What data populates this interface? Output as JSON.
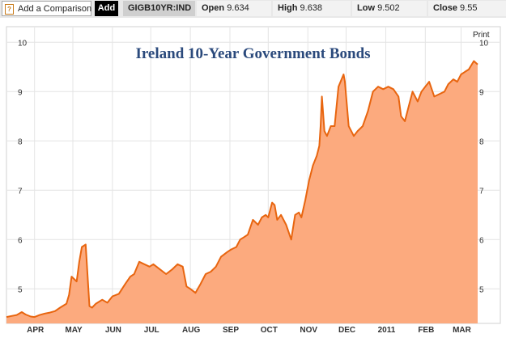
{
  "toolbar": {
    "help_glyph": "?",
    "compare_label": "Add a Comparison",
    "add_label": "Add",
    "symbol": "GIGB10YR:IND",
    "open_label": "Open",
    "open_value": "9.634",
    "high_label": "High",
    "high_value": "9.638",
    "low_label": "Low",
    "low_value": "9.502",
    "close_label": "Close",
    "close_value": "9.55"
  },
  "print_label": "Print",
  "colors": {
    "line": "#e8650f",
    "fill": "#fcaa7e",
    "title": "#2b4a7c"
  },
  "chart_data": {
    "type": "area",
    "title": "Ireland 10-Year Government Bonds",
    "xlabel": "",
    "ylabel": "",
    "ylim": [
      4.3,
      10.3
    ],
    "y_ticks": [
      5,
      6,
      7,
      8,
      9,
      10
    ],
    "x_ticks": [
      {
        "label": "APR",
        "x": "2010-04-01"
      },
      {
        "label": "MAY",
        "x": "2010-05-01"
      },
      {
        "label": "JUN",
        "x": "2010-06-01"
      },
      {
        "label": "JUL",
        "x": "2010-07-01"
      },
      {
        "label": "AUG",
        "x": "2010-08-01"
      },
      {
        "label": "SEP",
        "x": "2010-09-01"
      },
      {
        "label": "OCT",
        "x": "2010-10-01"
      },
      {
        "label": "NOV",
        "x": "2010-11-01"
      },
      {
        "label": "DEC",
        "x": "2010-12-01"
      },
      {
        "label": "2011",
        "x": "2011-01-01"
      },
      {
        "label": "FEB",
        "x": "2011-02-01"
      },
      {
        "label": "MAR",
        "x": "2011-03-01"
      }
    ],
    "xlim": [
      "2010-03-10",
      "2011-03-14"
    ],
    "grid": true,
    "series": [
      {
        "x": [
          "2010-03-10",
          "2010-03-14",
          "2010-03-18",
          "2010-03-22",
          "2010-03-25",
          "2010-03-29",
          "2010-04-01",
          "2010-04-05",
          "2010-04-09",
          "2010-04-13",
          "2010-04-17",
          "2010-04-21",
          "2010-04-26",
          "2010-04-28",
          "2010-04-30",
          "2010-05-02",
          "2010-05-04",
          "2010-05-06",
          "2010-05-08",
          "2010-05-11",
          "2010-05-14",
          "2010-05-16",
          "2010-05-19",
          "2010-05-24",
          "2010-05-28",
          "2010-06-01",
          "2010-06-06",
          "2010-06-11",
          "2010-06-15",
          "2010-06-18",
          "2010-06-22",
          "2010-06-26",
          "2010-06-30",
          "2010-07-03",
          "2010-07-08",
          "2010-07-13",
          "2010-07-18",
          "2010-07-22",
          "2010-07-26",
          "2010-07-29",
          "2010-08-01",
          "2010-08-05",
          "2010-08-09",
          "2010-08-13",
          "2010-08-17",
          "2010-08-21",
          "2010-08-25",
          "2010-08-30",
          "2010-09-02",
          "2010-09-06",
          "2010-09-09",
          "2010-09-12",
          "2010-09-15",
          "2010-09-19",
          "2010-09-23",
          "2010-09-26",
          "2010-09-29",
          "2010-10-01",
          "2010-10-04",
          "2010-10-06",
          "2010-10-08",
          "2010-10-11",
          "2010-10-15",
          "2010-10-19",
          "2010-10-22",
          "2010-10-25",
          "2010-10-27",
          "2010-10-30",
          "2010-11-02",
          "2010-11-05",
          "2010-11-08",
          "2010-11-10",
          "2010-11-11",
          "2010-11-12",
          "2010-11-14",
          "2010-11-16",
          "2010-11-19",
          "2010-11-22",
          "2010-11-25",
          "2010-11-29",
          "2010-11-30",
          "2010-12-03",
          "2010-12-07",
          "2010-12-10",
          "2010-12-14",
          "2010-12-18",
          "2010-12-22",
          "2010-12-26",
          "2010-12-30",
          "2011-01-03",
          "2011-01-07",
          "2011-01-11",
          "2011-01-13",
          "2011-01-16",
          "2011-01-19",
          "2011-01-22",
          "2011-01-26",
          "2011-01-29",
          "2011-02-01",
          "2011-02-04",
          "2011-02-08",
          "2011-02-12",
          "2011-02-16",
          "2011-02-19",
          "2011-02-23",
          "2011-02-26",
          "2011-03-01",
          "2011-03-04",
          "2011-03-07",
          "2011-03-11",
          "2011-03-14"
        ],
        "values": [
          4.43,
          4.45,
          4.47,
          4.53,
          4.48,
          4.44,
          4.43,
          4.47,
          4.5,
          4.52,
          4.55,
          4.62,
          4.7,
          4.88,
          5.25,
          5.2,
          5.15,
          5.55,
          5.85,
          5.9,
          4.65,
          4.62,
          4.7,
          4.78,
          4.72,
          4.85,
          4.9,
          5.1,
          5.25,
          5.3,
          5.55,
          5.5,
          5.45,
          5.5,
          5.4,
          5.3,
          5.4,
          5.5,
          5.45,
          5.05,
          5.0,
          4.92,
          5.1,
          5.3,
          5.35,
          5.45,
          5.65,
          5.75,
          5.8,
          5.85,
          6.0,
          6.05,
          6.1,
          6.4,
          6.3,
          6.45,
          6.5,
          6.45,
          6.75,
          6.7,
          6.4,
          6.5,
          6.3,
          6.0,
          6.5,
          6.55,
          6.45,
          6.8,
          7.2,
          7.5,
          7.7,
          7.9,
          8.3,
          8.9,
          8.2,
          8.1,
          8.3,
          8.3,
          9.1,
          9.35,
          9.2,
          8.3,
          8.1,
          8.2,
          8.3,
          8.6,
          9.0,
          9.1,
          9.05,
          9.1,
          9.05,
          8.9,
          8.5,
          8.4,
          8.7,
          9.0,
          8.8,
          9.0,
          9.1,
          9.2,
          8.9,
          8.95,
          9.0,
          9.15,
          9.25,
          9.2,
          9.35,
          9.4,
          9.45,
          9.62,
          9.55
        ]
      }
    ]
  }
}
